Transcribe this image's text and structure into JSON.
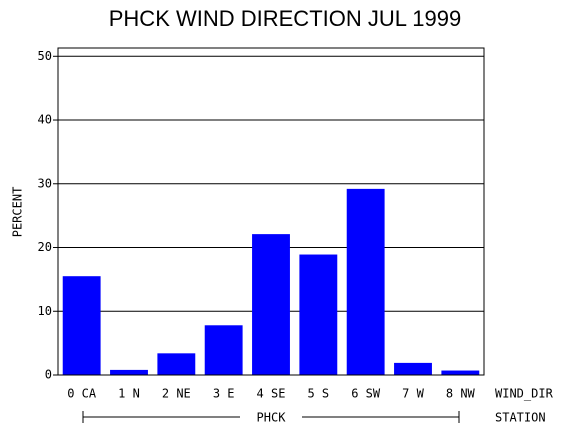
{
  "chart_data": {
    "type": "bar",
    "title": "PHCK WIND DIRECTION JUL 1999",
    "y_label": "PERCENT",
    "x_label": "WIND_DIR",
    "group_label": "PHCK",
    "group_axis_label": "STATION",
    "categories": [
      "0 CA",
      "1 N",
      "2 NE",
      "3 E",
      "4 SE",
      "5 S",
      "6 SW",
      "7 W",
      "8 NW"
    ],
    "values": [
      15.5,
      0.8,
      3.4,
      7.8,
      22.1,
      18.9,
      29.2,
      1.9,
      0.7
    ],
    "color": "#0000ff",
    "ylim": [
      0,
      51.3
    ],
    "yticks": [
      0,
      10,
      20,
      30,
      40,
      50
    ],
    "grid": true
  }
}
